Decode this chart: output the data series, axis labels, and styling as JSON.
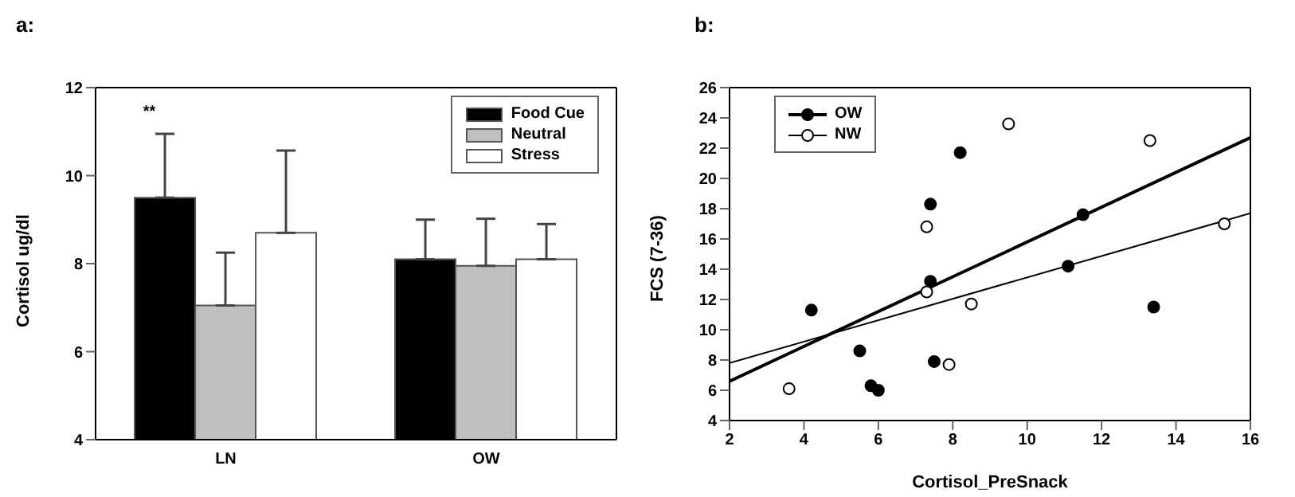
{
  "chart_data": [
    {
      "type": "bar",
      "title": "a:",
      "ylabel": "Cortisol ug/dl",
      "categories": [
        "LN",
        "OW"
      ],
      "ylim": [
        4,
        12
      ],
      "yticks": [
        4,
        6,
        8,
        10,
        12
      ],
      "legend": "top right",
      "annotations": [
        "**"
      ],
      "series": [
        {
          "name": "Food Cue",
          "color": "#000000",
          "values": [
            9.5,
            8.1
          ],
          "errors": [
            [
              9.5,
              10.95
            ],
            [
              8.1,
              9.0
            ]
          ]
        },
        {
          "name": "Neutral",
          "color": "#c0c0c0",
          "values": [
            7.05,
            7.95
          ],
          "errors": [
            [
              7.05,
              8.25
            ],
            [
              7.95,
              9.02
            ]
          ]
        },
        {
          "name": "Stress",
          "color": "#ffffff",
          "values": [
            8.7,
            8.1
          ],
          "errors": [
            [
              8.7,
              10.57
            ],
            [
              8.1,
              8.9
            ]
          ]
        }
      ]
    },
    {
      "type": "scatter",
      "title": "b:",
      "xlabel": "Cortisol_PreSnack",
      "ylabel": "FCS (7-36)",
      "xlim": [
        2,
        16
      ],
      "xticks": [
        2,
        4,
        6,
        8,
        10,
        12,
        14,
        16
      ],
      "ylim": [
        4,
        26
      ],
      "yticks": [
        4,
        6,
        8,
        10,
        12,
        14,
        16,
        18,
        20,
        22,
        24,
        26
      ],
      "legend": "top left",
      "series": [
        {
          "name": "OW",
          "color": "#000000",
          "marker": "circle",
          "x": [
            4.2,
            5.5,
            5.8,
            6.0,
            7.4,
            7.4,
            7.5,
            8.2,
            11.1,
            11.5,
            13.4
          ],
          "values": [
            11.3,
            8.6,
            6.3,
            6.0,
            18.3,
            13.2,
            7.9,
            21.7,
            14.2,
            17.6,
            11.5
          ]
        },
        {
          "name": "NW",
          "color": "#ffffff",
          "marker": "circle",
          "x": [
            3.6,
            7.3,
            7.3,
            7.9,
            8.5,
            9.5,
            13.3,
            15.3
          ],
          "values": [
            6.1,
            16.8,
            12.5,
            7.7,
            11.7,
            23.6,
            22.5,
            17.0
          ]
        },
        {
          "type": "line",
          "color": "#000000",
          "marker": "none",
          "x": [
            2,
            16
          ],
          "values": [
            6.6,
            22.7
          ]
        },
        {
          "type": "line",
          "color": "#000000",
          "marker": "none",
          "x": [
            2,
            16
          ],
          "values": [
            7.8,
            17.7
          ]
        }
      ]
    }
  ]
}
